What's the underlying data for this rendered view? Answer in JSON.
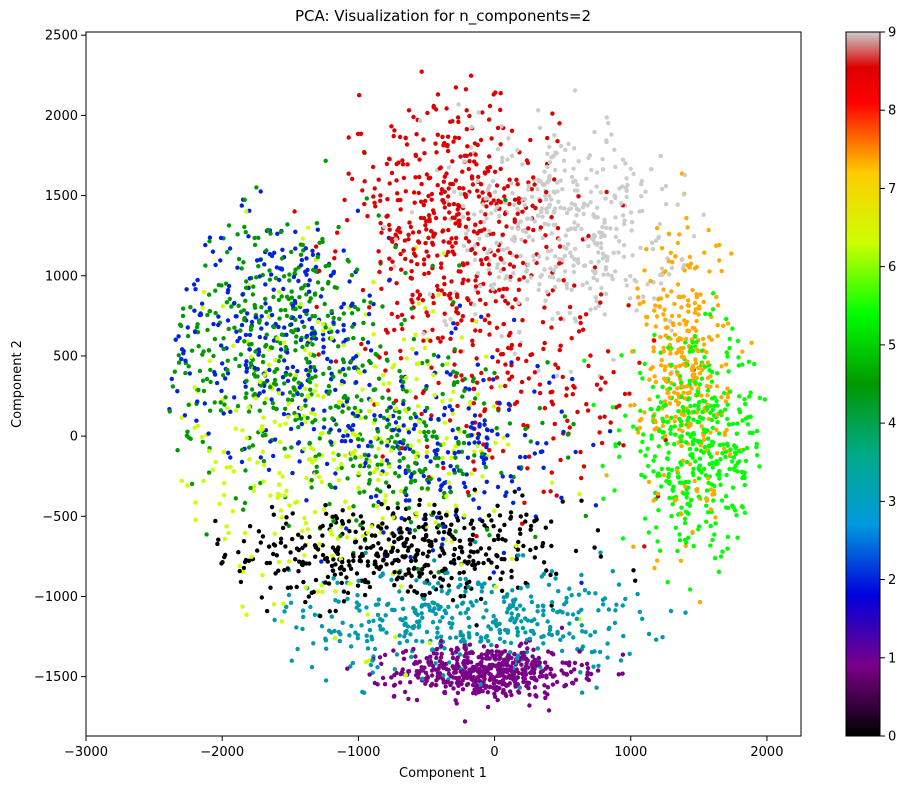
{
  "chart_data": {
    "type": "scatter",
    "title": "PCA: Visualization for n_components=2",
    "xlabel": "Component 1",
    "ylabel": "Component 2",
    "xlim": [
      -3000,
      2250
    ],
    "ylim": [
      -1870,
      2520
    ],
    "xticks": [
      -3000,
      -2000,
      -1000,
      0,
      1000,
      2000
    ],
    "yticks": [
      -1500,
      -1000,
      -500,
      0,
      500,
      1000,
      1500,
      2000,
      2500
    ],
    "grid": false,
    "colorbar": {
      "colormap": "nipy_spectral",
      "min": 0,
      "max": 9,
      "ticks": [
        0,
        1,
        2,
        3,
        4,
        5,
        6,
        7,
        8,
        9
      ],
      "stops": [
        {
          "v": 0.0,
          "color": "#000000"
        },
        {
          "v": 0.1,
          "color": "#7a0088"
        },
        {
          "v": 0.2,
          "color": "#0000dd"
        },
        {
          "v": 0.3,
          "color": "#0099dd"
        },
        {
          "v": 0.4,
          "color": "#00aa88"
        },
        {
          "v": 0.5,
          "color": "#009900"
        },
        {
          "v": 0.6,
          "color": "#00ff00"
        },
        {
          "v": 0.7,
          "color": "#ccff00"
        },
        {
          "v": 0.8,
          "color": "#ffcc00"
        },
        {
          "v": 0.9,
          "color": "#ff0000"
        },
        {
          "v": 0.95,
          "color": "#dd0000"
        },
        {
          "v": 1.0,
          "color": "#cccccc"
        }
      ]
    },
    "clusters": [
      {
        "label": 0,
        "color": "#000000",
        "center": [
          -700,
          -720
        ],
        "spread": [
          620,
          160
        ],
        "count": 460
      },
      {
        "label": 1,
        "color": "#7a0088",
        "center": [
          -50,
          -1470
        ],
        "spread": [
          330,
          80
        ],
        "count": 520
      },
      {
        "label": 2,
        "color": "#0022dd",
        "center": [
          -1600,
          650
        ],
        "spread": [
          420,
          380
        ],
        "count": 300
      },
      {
        "label": 2,
        "color": "#0022dd",
        "center": [
          -400,
          -50
        ],
        "spread": [
          500,
          300
        ],
        "count": 220
      },
      {
        "label": 3,
        "color": "#0099aa",
        "center": [
          -200,
          -1150
        ],
        "spread": [
          650,
          170
        ],
        "count": 420
      },
      {
        "label": 4,
        "color": "#009900",
        "center": [
          -1550,
          600
        ],
        "spread": [
          450,
          400
        ],
        "count": 430
      },
      {
        "label": 4,
        "color": "#009900",
        "center": [
          -600,
          -100
        ],
        "spread": [
          500,
          300
        ],
        "count": 200
      },
      {
        "label": 5,
        "color": "#00ff00",
        "center": [
          1500,
          -60
        ],
        "spread": [
          280,
          320
        ],
        "count": 440
      },
      {
        "label": 6,
        "color": "#ccff00",
        "center": [
          -1200,
          -100
        ],
        "spread": [
          700,
          500
        ],
        "count": 400
      },
      {
        "label": 7,
        "color": "#ffaa00",
        "center": [
          1400,
          420
        ],
        "spread": [
          160,
          450
        ],
        "count": 330
      },
      {
        "label": 8,
        "color": "#dd0000",
        "center": [
          -300,
          1300
        ],
        "spread": [
          380,
          400
        ],
        "count": 520
      },
      {
        "label": 8,
        "color": "#dd0000",
        "center": [
          300,
          350
        ],
        "spread": [
          500,
          350
        ],
        "count": 160
      },
      {
        "label": 9,
        "color": "#cccccc",
        "center": [
          500,
          1300
        ],
        "spread": [
          420,
          330
        ],
        "count": 460
      }
    ]
  }
}
